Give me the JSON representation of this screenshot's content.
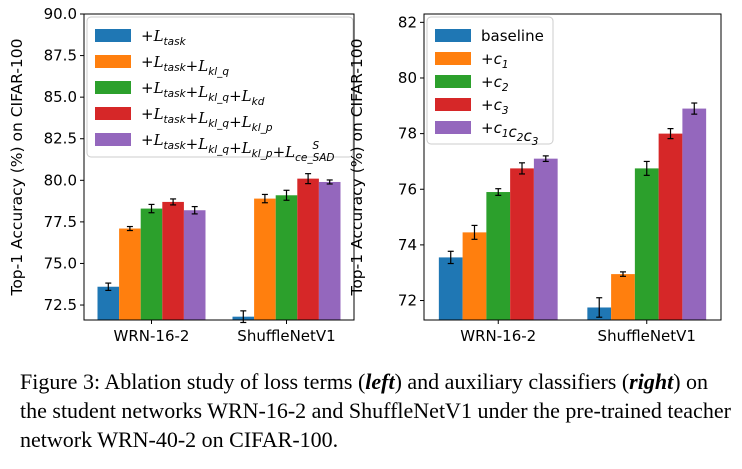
{
  "chart_data": [
    {
      "type": "bar",
      "categories": [
        "WRN-16-2",
        "ShuffleNetV1"
      ],
      "ylabel": "Top-1 Accuracy (%) on CIFAR-100",
      "ylim": [
        71.6,
        90.0
      ],
      "yticks": [
        "72.5",
        "75.0",
        "77.5",
        "80.0",
        "82.5",
        "85.0",
        "87.5",
        "90.0"
      ],
      "legend_position": "top-right",
      "series": [
        {
          "name": "+L_task",
          "color": "#1f77b4",
          "values": [
            73.6,
            71.8
          ],
          "errors": [
            0.22,
            0.35
          ]
        },
        {
          "name": "+L_task+L_kl_q",
          "color": "#ff7f0e",
          "values": [
            77.1,
            78.9
          ],
          "errors": [
            0.12,
            0.25
          ]
        },
        {
          "name": "+L_task+L_kl_q+L_kd",
          "color": "#2ca02c",
          "values": [
            78.3,
            79.1
          ],
          "errors": [
            0.25,
            0.3
          ]
        },
        {
          "name": "+L_task+L_kl_q+L_kl_p",
          "color": "#d62728",
          "values": [
            78.7,
            80.1
          ],
          "errors": [
            0.18,
            0.3
          ]
        },
        {
          "name": "+L_task+L_kl_q+L_kl_p+L_ce_SAD^S",
          "color": "#9467bd",
          "values": [
            78.2,
            79.9
          ],
          "errors": [
            0.22,
            0.12
          ]
        }
      ]
    },
    {
      "type": "bar",
      "categories": [
        "WRN-16-2",
        "ShuffleNetV1"
      ],
      "ylabel": "Top-1 Accuracy (%) on CIFAR-100",
      "ylim": [
        71.3,
        82.3
      ],
      "yticks": [
        "72",
        "74",
        "76",
        "78",
        "80",
        "82"
      ],
      "legend_position": "top-left",
      "series": [
        {
          "name": "baseline",
          "color": "#1f77b4",
          "values": [
            73.55,
            71.75
          ],
          "errors": [
            0.22,
            0.35
          ]
        },
        {
          "name": "+c1",
          "color": "#ff7f0e",
          "values": [
            74.45,
            72.95
          ],
          "errors": [
            0.25,
            0.08
          ]
        },
        {
          "name": "+c2",
          "color": "#2ca02c",
          "values": [
            75.9,
            76.75
          ],
          "errors": [
            0.12,
            0.25
          ]
        },
        {
          "name": "+c3",
          "color": "#d62728",
          "values": [
            76.75,
            78.0
          ],
          "errors": [
            0.2,
            0.18
          ]
        },
        {
          "name": "+c1c2c3",
          "color": "#9467bd",
          "values": [
            77.1,
            78.9
          ],
          "errors": [
            0.1,
            0.2
          ]
        }
      ]
    }
  ],
  "legend_left": [
    {
      "sign": "+",
      "parts": [
        [
          "L",
          "task",
          ""
        ]
      ]
    },
    {
      "sign": "+",
      "parts": [
        [
          "L",
          "task",
          ""
        ],
        [
          "+L",
          "kl_q",
          ""
        ]
      ]
    },
    {
      "sign": "+",
      "parts": [
        [
          "L",
          "task",
          ""
        ],
        [
          "+L",
          "kl_q",
          ""
        ],
        [
          "+L",
          "kd",
          ""
        ]
      ]
    },
    {
      "sign": "+",
      "parts": [
        [
          "L",
          "task",
          ""
        ],
        [
          "+L",
          "kl_q",
          ""
        ],
        [
          "+L",
          "kl_p",
          ""
        ]
      ]
    },
    {
      "sign": "+",
      "parts": [
        [
          "L",
          "task",
          ""
        ],
        [
          "+L",
          "kl_q",
          ""
        ],
        [
          "+L",
          "kl_p",
          ""
        ],
        [
          "+L",
          "ce_SAD",
          "S"
        ]
      ]
    }
  ],
  "legend_right": [
    {
      "sign": "",
      "parts": [
        [
          "baseline",
          "",
          ""
        ]
      ]
    },
    {
      "sign": "+",
      "parts": [
        [
          "c",
          "1",
          ""
        ]
      ]
    },
    {
      "sign": "+",
      "parts": [
        [
          "c",
          "2",
          ""
        ]
      ]
    },
    {
      "sign": "+",
      "parts": [
        [
          "c",
          "3",
          ""
        ]
      ]
    },
    {
      "sign": "+",
      "parts": [
        [
          "c",
          "1",
          ""
        ],
        [
          "c",
          "2",
          ""
        ],
        [
          "c",
          "3",
          ""
        ]
      ]
    }
  ],
  "caption": {
    "part1": "Figure 3: Ablation study of loss terms (",
    "left": "left",
    "part2": ") and auxiliary classifiers (",
    "right": "right",
    "part3": ") on the student networks WRN-16-2 and ShuffleNetV1 under the pre-trained teacher network WRN-40-2 on CIFAR-100."
  }
}
